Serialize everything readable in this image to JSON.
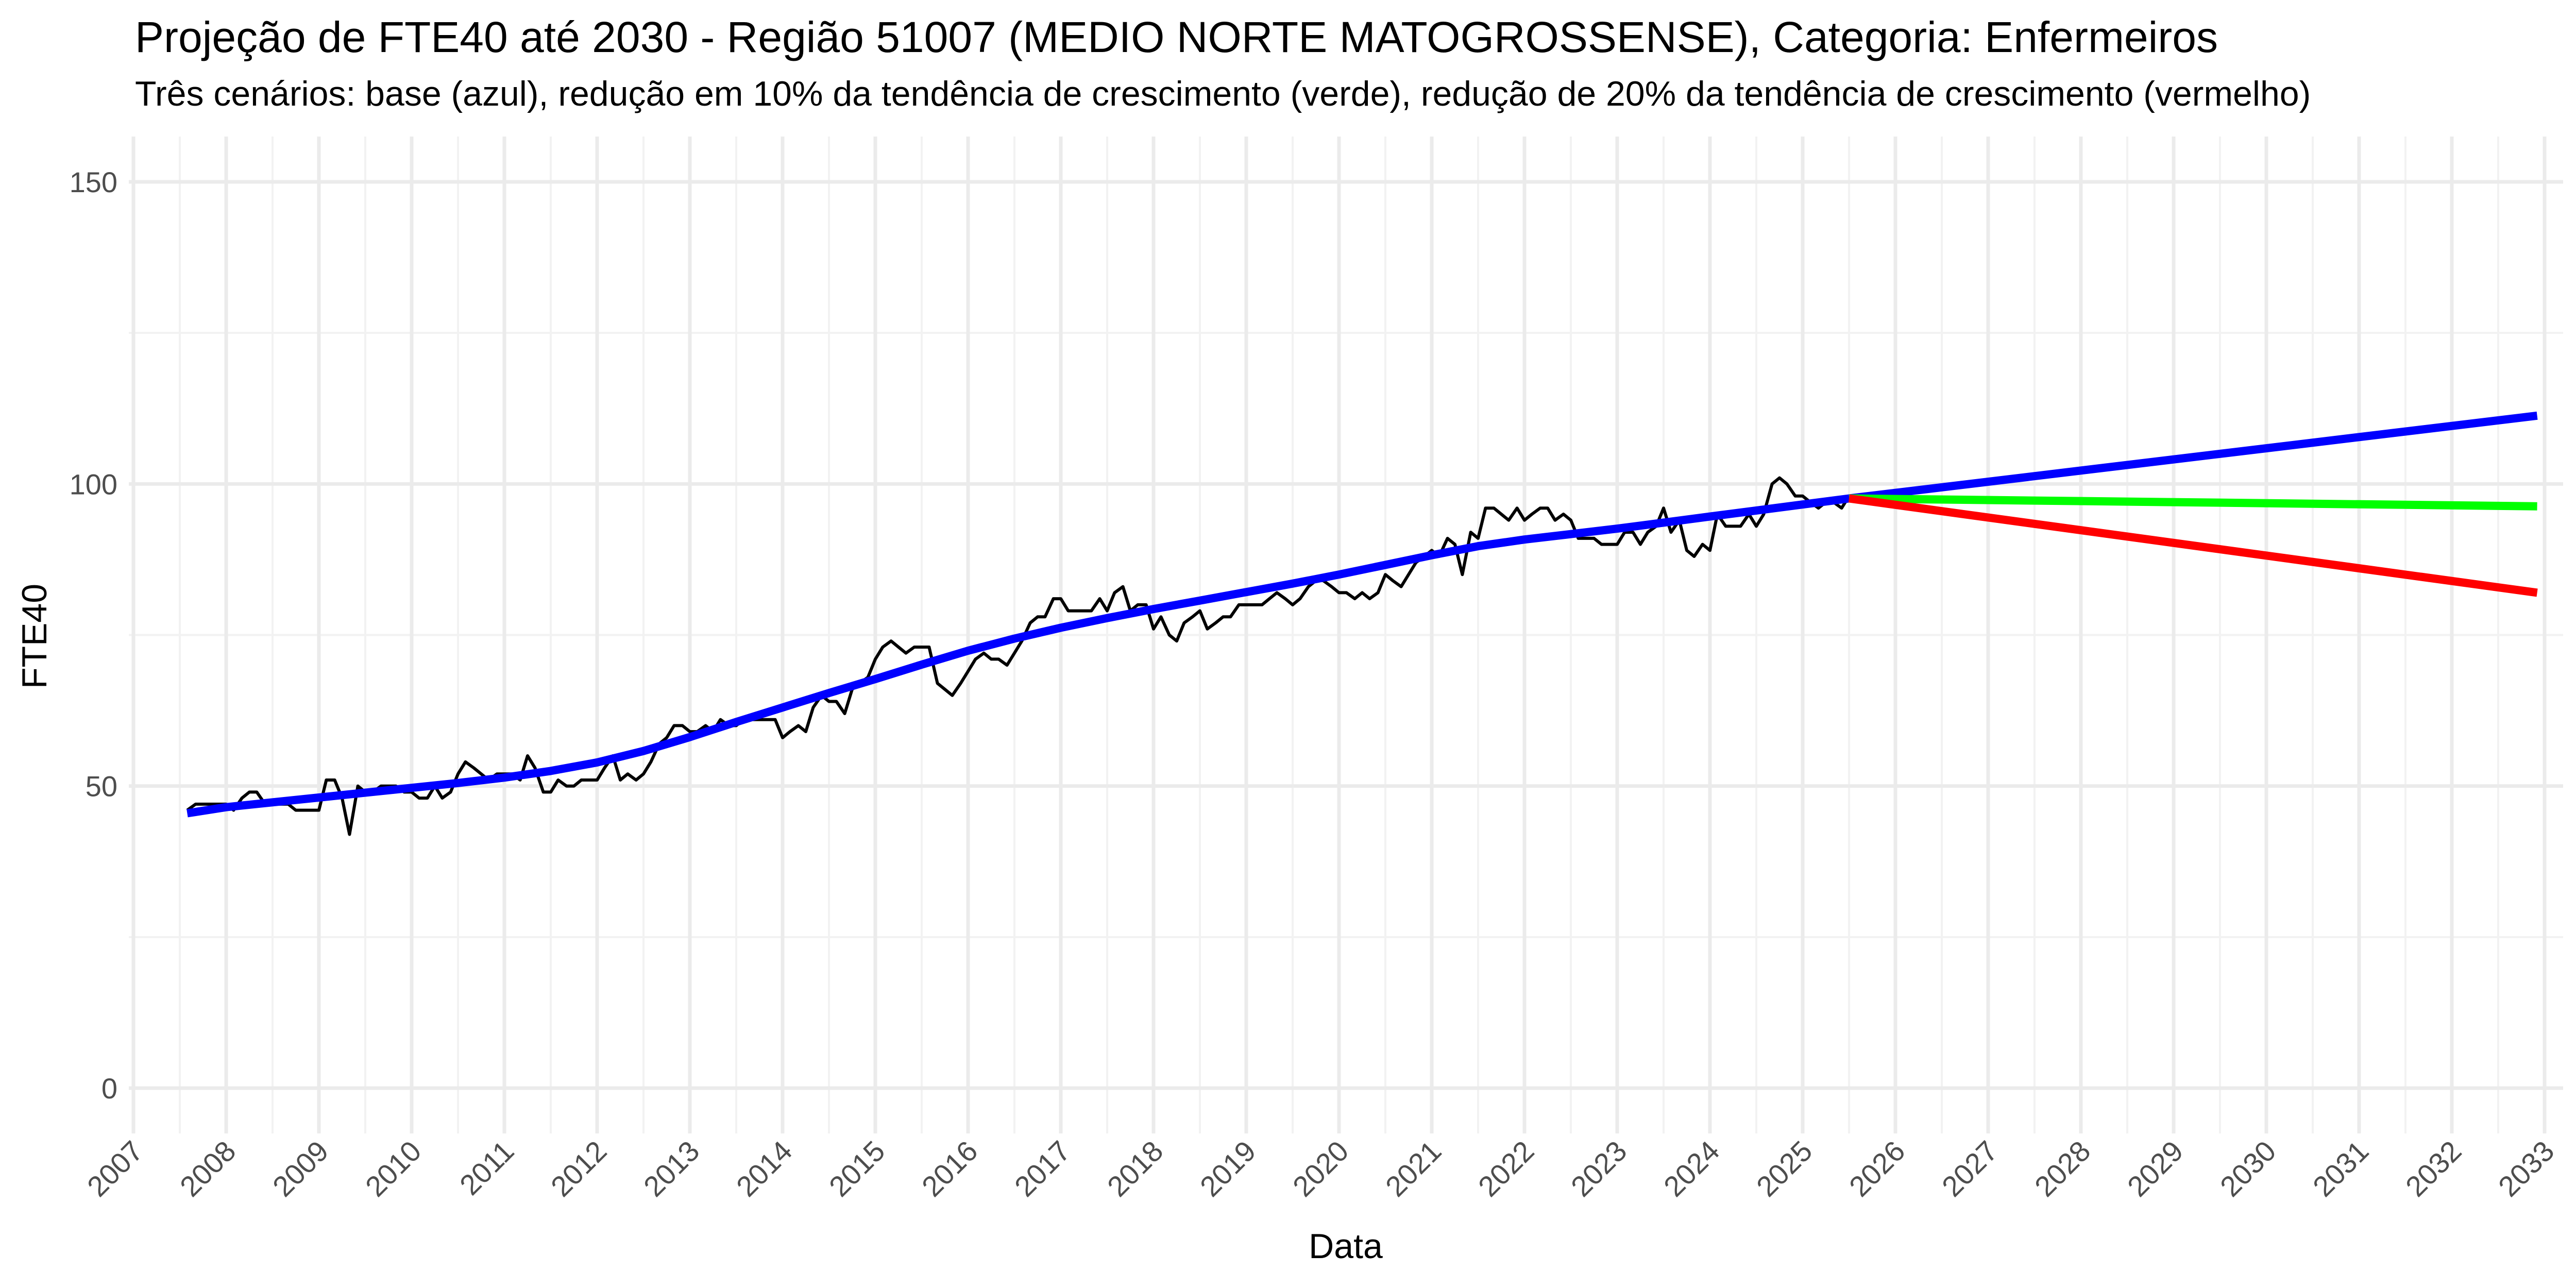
{
  "chart_data": {
    "type": "line",
    "title": "Projeção de FTE40 até 2030 - Região 51007 (MEDIO NORTE MATOGROSSENSE), Categoria: Enfermeiros",
    "subtitle": "Três cenários: base (azul), redução em 10% da tendência de crescimento (verde), redução de 20% da tendência de crescimento (vermelho)",
    "xlabel": "Data",
    "ylabel": "FTE40",
    "xlim": [
      2006.95,
      2033.2
    ],
    "ylim": [
      -7.5,
      157.5
    ],
    "x_ticks": [
      2007,
      2008,
      2009,
      2010,
      2011,
      2012,
      2013,
      2014,
      2015,
      2016,
      2017,
      2018,
      2019,
      2020,
      2021,
      2022,
      2023,
      2024,
      2025,
      2026,
      2027,
      2028,
      2029,
      2030,
      2031,
      2032,
      2033
    ],
    "x_tick_labels": [
      "2007",
      "2008",
      "2009",
      "2010",
      "2011",
      "2012",
      "2013",
      "2014",
      "2015",
      "2016",
      "2017",
      "2018",
      "2019",
      "2020",
      "2021",
      "2022",
      "2023",
      "2024",
      "2025",
      "2026",
      "2027",
      "2028",
      "2029",
      "2030",
      "2031",
      "2032",
      "2033"
    ],
    "y_ticks": [
      0,
      50,
      100,
      150
    ],
    "y_tick_labels": [
      "0",
      "50",
      "100",
      "150"
    ],
    "grid": true,
    "legend": "none",
    "series": [
      {
        "color": "#000000",
        "points": [
          [
            2007.58,
            46
          ],
          [
            2007.67,
            47
          ],
          [
            2007.75,
            47
          ],
          [
            2007.83,
            47
          ],
          [
            2007.92,
            47
          ],
          [
            2008.0,
            47
          ],
          [
            2008.08,
            46
          ],
          [
            2008.17,
            48
          ],
          [
            2008.25,
            49
          ],
          [
            2008.33,
            49
          ],
          [
            2008.42,
            47
          ],
          [
            2008.5,
            47
          ],
          [
            2008.58,
            47
          ],
          [
            2008.67,
            47
          ],
          [
            2008.75,
            46
          ],
          [
            2008.83,
            46
          ],
          [
            2008.92,
            46
          ],
          [
            2009.0,
            46
          ],
          [
            2009.08,
            51
          ],
          [
            2009.17,
            51
          ],
          [
            2009.25,
            48
          ],
          [
            2009.33,
            42
          ],
          [
            2009.42,
            50
          ],
          [
            2009.5,
            49
          ],
          [
            2009.58,
            49
          ],
          [
            2009.67,
            50
          ],
          [
            2009.75,
            50
          ],
          [
            2009.83,
            50
          ],
          [
            2009.92,
            49
          ],
          [
            2010.0,
            49
          ],
          [
            2010.08,
            48
          ],
          [
            2010.17,
            48
          ],
          [
            2010.25,
            50
          ],
          [
            2010.33,
            48
          ],
          [
            2010.42,
            49
          ],
          [
            2010.5,
            52
          ],
          [
            2010.58,
            54
          ],
          [
            2010.67,
            53
          ],
          [
            2010.75,
            52
          ],
          [
            2010.83,
            51
          ],
          [
            2010.92,
            52
          ],
          [
            2011.0,
            52
          ],
          [
            2011.08,
            52
          ],
          [
            2011.17,
            51
          ],
          [
            2011.25,
            55
          ],
          [
            2011.33,
            53
          ],
          [
            2011.42,
            49
          ],
          [
            2011.5,
            49
          ],
          [
            2011.58,
            51
          ],
          [
            2011.67,
            50
          ],
          [
            2011.75,
            50
          ],
          [
            2011.83,
            51
          ],
          [
            2011.92,
            51
          ],
          [
            2012.0,
            51
          ],
          [
            2012.08,
            53
          ],
          [
            2012.17,
            55
          ],
          [
            2012.25,
            51
          ],
          [
            2012.33,
            52
          ],
          [
            2012.42,
            51
          ],
          [
            2012.5,
            52
          ],
          [
            2012.58,
            54
          ],
          [
            2012.67,
            57
          ],
          [
            2012.75,
            58
          ],
          [
            2012.83,
            60
          ],
          [
            2012.92,
            60
          ],
          [
            2013.0,
            59
          ],
          [
            2013.08,
            59
          ],
          [
            2013.17,
            60
          ],
          [
            2013.25,
            59
          ],
          [
            2013.33,
            61
          ],
          [
            2013.42,
            60
          ],
          [
            2013.5,
            60
          ],
          [
            2013.58,
            61
          ],
          [
            2013.67,
            61
          ],
          [
            2013.75,
            61
          ],
          [
            2013.83,
            61
          ],
          [
            2013.92,
            61
          ],
          [
            2014.0,
            58
          ],
          [
            2014.08,
            59
          ],
          [
            2014.17,
            60
          ],
          [
            2014.25,
            59
          ],
          [
            2014.33,
            63
          ],
          [
            2014.42,
            65
          ],
          [
            2014.5,
            64
          ],
          [
            2014.58,
            64
          ],
          [
            2014.67,
            62
          ],
          [
            2014.75,
            66
          ],
          [
            2014.83,
            67
          ],
          [
            2014.92,
            68
          ],
          [
            2015.0,
            71
          ],
          [
            2015.08,
            73
          ],
          [
            2015.17,
            74
          ],
          [
            2015.25,
            73
          ],
          [
            2015.33,
            72
          ],
          [
            2015.42,
            73
          ],
          [
            2015.5,
            73
          ],
          [
            2015.58,
            73
          ],
          [
            2015.67,
            67
          ],
          [
            2015.75,
            66
          ],
          [
            2015.83,
            65
          ],
          [
            2015.92,
            67
          ],
          [
            2016.0,
            69
          ],
          [
            2016.08,
            71
          ],
          [
            2016.17,
            72
          ],
          [
            2016.25,
            71
          ],
          [
            2016.33,
            71
          ],
          [
            2016.42,
            70
          ],
          [
            2016.5,
            72
          ],
          [
            2016.58,
            74
          ],
          [
            2016.67,
            77
          ],
          [
            2016.75,
            78
          ],
          [
            2016.83,
            78
          ],
          [
            2016.92,
            81
          ],
          [
            2017.0,
            81
          ],
          [
            2017.08,
            79
          ],
          [
            2017.17,
            79
          ],
          [
            2017.25,
            79
          ],
          [
            2017.33,
            79
          ],
          [
            2017.42,
            81
          ],
          [
            2017.5,
            79
          ],
          [
            2017.58,
            82
          ],
          [
            2017.67,
            83
          ],
          [
            2017.75,
            79
          ],
          [
            2017.83,
            80
          ],
          [
            2017.92,
            80
          ],
          [
            2018.0,
            76
          ],
          [
            2018.08,
            78
          ],
          [
            2018.17,
            75
          ],
          [
            2018.25,
            74
          ],
          [
            2018.33,
            77
          ],
          [
            2018.42,
            78
          ],
          [
            2018.5,
            79
          ],
          [
            2018.58,
            76
          ],
          [
            2018.67,
            77
          ],
          [
            2018.75,
            78
          ],
          [
            2018.83,
            78
          ],
          [
            2018.92,
            80
          ],
          [
            2019.0,
            80
          ],
          [
            2019.08,
            80
          ],
          [
            2019.17,
            80
          ],
          [
            2019.25,
            81
          ],
          [
            2019.33,
            82
          ],
          [
            2019.42,
            81
          ],
          [
            2019.5,
            80
          ],
          [
            2019.58,
            81
          ],
          [
            2019.67,
            83
          ],
          [
            2019.75,
            84
          ],
          [
            2019.83,
            84
          ],
          [
            2019.92,
            83
          ],
          [
            2020.0,
            82
          ],
          [
            2020.08,
            82
          ],
          [
            2020.17,
            81
          ],
          [
            2020.25,
            82
          ],
          [
            2020.33,
            81
          ],
          [
            2020.42,
            82
          ],
          [
            2020.5,
            85
          ],
          [
            2020.58,
            84
          ],
          [
            2020.67,
            83
          ],
          [
            2020.75,
            85
          ],
          [
            2020.83,
            87
          ],
          [
            2020.92,
            88
          ],
          [
            2021.0,
            89
          ],
          [
            2021.08,
            88
          ],
          [
            2021.17,
            91
          ],
          [
            2021.25,
            90
          ],
          [
            2021.33,
            85
          ],
          [
            2021.42,
            92
          ],
          [
            2021.5,
            91
          ],
          [
            2021.58,
            96
          ],
          [
            2021.67,
            96
          ],
          [
            2021.75,
            95
          ],
          [
            2021.83,
            94
          ],
          [
            2021.92,
            96
          ],
          [
            2022.0,
            94
          ],
          [
            2022.08,
            95
          ],
          [
            2022.17,
            96
          ],
          [
            2022.25,
            96
          ],
          [
            2022.33,
            94
          ],
          [
            2022.42,
            95
          ],
          [
            2022.5,
            94
          ],
          [
            2022.58,
            91
          ],
          [
            2022.67,
            91
          ],
          [
            2022.75,
            91
          ],
          [
            2022.83,
            90
          ],
          [
            2022.92,
            90
          ],
          [
            2023.0,
            90
          ],
          [
            2023.08,
            92
          ],
          [
            2023.17,
            92
          ],
          [
            2023.25,
            90
          ],
          [
            2023.33,
            92
          ],
          [
            2023.42,
            93
          ],
          [
            2023.5,
            96
          ],
          [
            2023.58,
            92
          ],
          [
            2023.67,
            94
          ],
          [
            2023.75,
            89
          ],
          [
            2023.83,
            88
          ],
          [
            2023.92,
            90
          ],
          [
            2024.0,
            89
          ],
          [
            2024.08,
            95
          ],
          [
            2024.17,
            93
          ],
          [
            2024.25,
            93
          ],
          [
            2024.33,
            93
          ],
          [
            2024.42,
            95
          ],
          [
            2024.5,
            93
          ],
          [
            2024.58,
            95
          ],
          [
            2024.67,
            100
          ],
          [
            2024.75,
            101
          ],
          [
            2024.83,
            100
          ],
          [
            2024.92,
            98
          ],
          [
            2025.0,
            98
          ],
          [
            2025.08,
            97
          ],
          [
            2025.17,
            96
          ],
          [
            2025.25,
            97
          ],
          [
            2025.33,
            97
          ],
          [
            2025.42,
            96
          ],
          [
            2025.5,
            98
          ]
        ]
      },
      {
        "color": "#0000ff",
        "points": [
          [
            2007.58,
            45.5
          ],
          [
            2008.0,
            46.5
          ],
          [
            2008.5,
            47.3
          ],
          [
            2009.0,
            48.1
          ],
          [
            2009.5,
            48.9
          ],
          [
            2010.0,
            49.7
          ],
          [
            2010.5,
            50.5
          ],
          [
            2011.0,
            51.4
          ],
          [
            2011.5,
            52.5
          ],
          [
            2012.0,
            53.9
          ],
          [
            2012.5,
            55.8
          ],
          [
            2013.0,
            58.1
          ],
          [
            2013.5,
            60.6
          ],
          [
            2014.0,
            63.0
          ],
          [
            2014.5,
            65.4
          ],
          [
            2015.0,
            67.7
          ],
          [
            2015.5,
            70.1
          ],
          [
            2016.0,
            72.4
          ],
          [
            2016.5,
            74.4
          ],
          [
            2017.0,
            76.2
          ],
          [
            2017.5,
            77.8
          ],
          [
            2018.0,
            79.3
          ],
          [
            2018.5,
            80.7
          ],
          [
            2019.0,
            82.1
          ],
          [
            2019.5,
            83.5
          ],
          [
            2020.0,
            85.0
          ],
          [
            2020.5,
            86.6
          ],
          [
            2021.0,
            88.2
          ],
          [
            2021.5,
            89.7
          ],
          [
            2022.0,
            90.8
          ],
          [
            2022.5,
            91.7
          ],
          [
            2023.0,
            92.6
          ],
          [
            2023.5,
            93.6
          ],
          [
            2024.0,
            94.6
          ],
          [
            2024.5,
            95.6
          ],
          [
            2025.0,
            96.6
          ],
          [
            2025.5,
            97.6
          ]
        ]
      },
      {
        "color": "#0000ff",
        "points": [
          [
            2025.5,
            97.6
          ],
          [
            2032.92,
            111.3
          ]
        ]
      },
      {
        "color": "#00ff00",
        "points": [
          [
            2025.5,
            97.6
          ],
          [
            2032.92,
            96.3
          ]
        ]
      },
      {
        "color": "#ff0000",
        "points": [
          [
            2025.5,
            97.6
          ],
          [
            2032.92,
            82.0
          ]
        ]
      }
    ]
  }
}
